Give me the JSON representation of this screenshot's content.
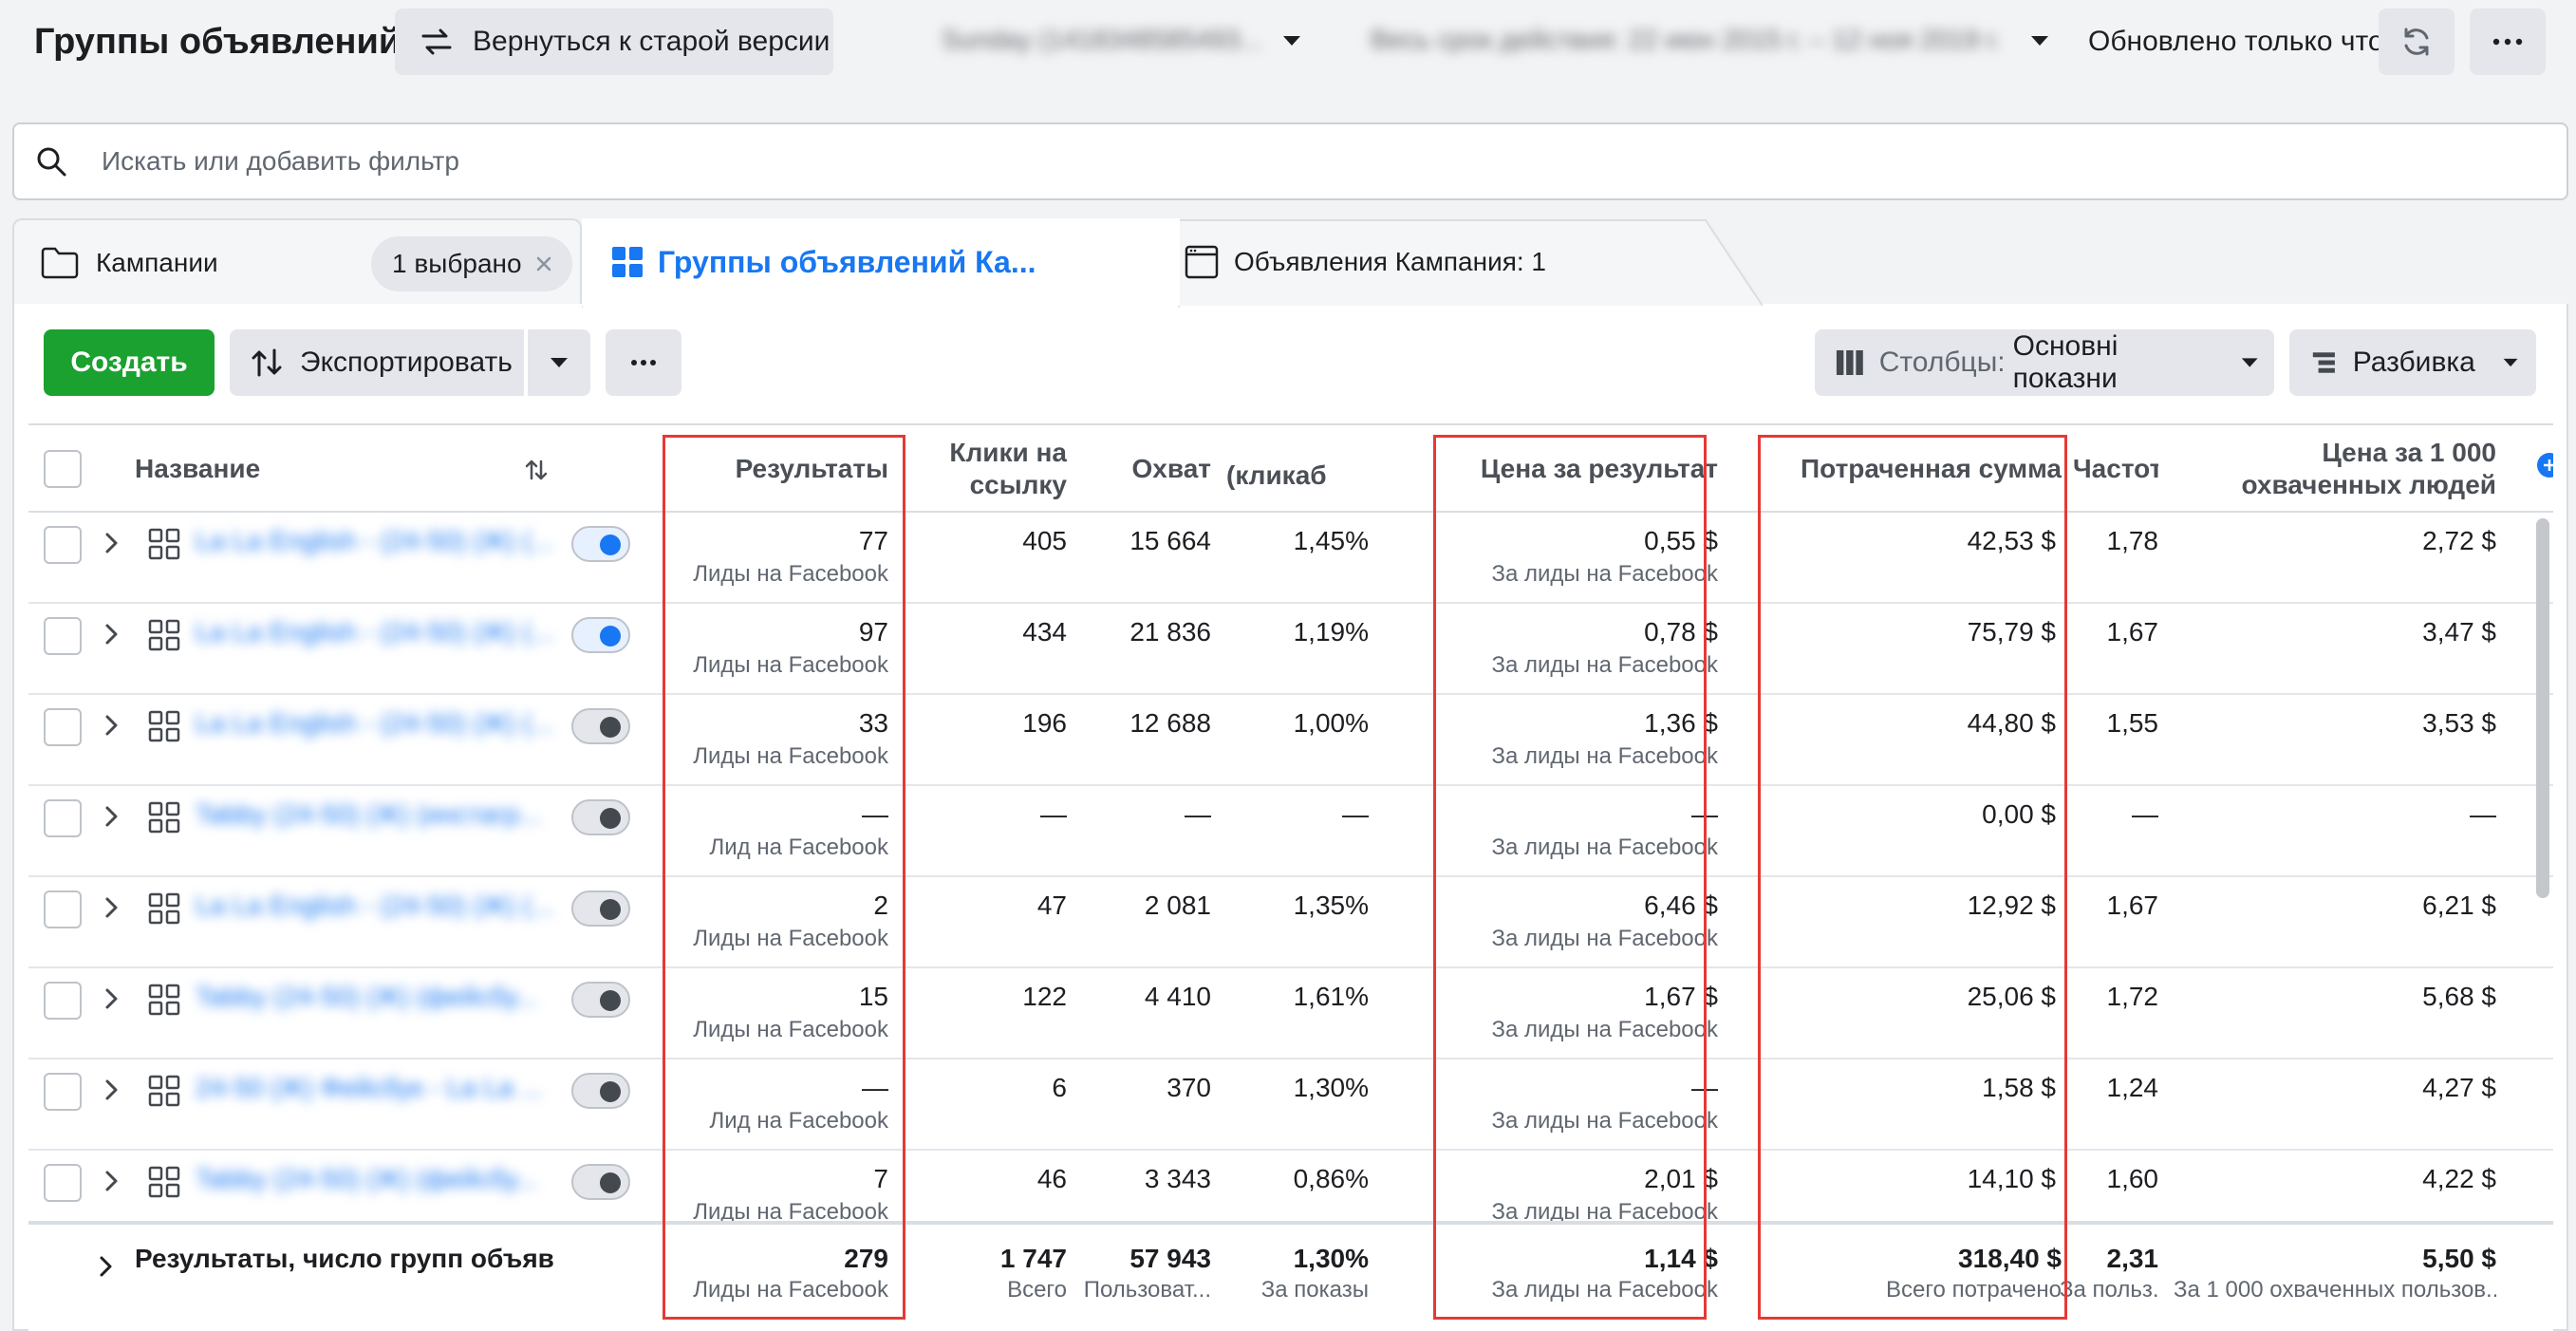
{
  "header": {
    "title": "Группы объявлений",
    "old_version_label": "Вернуться к старой версии",
    "account_selector": "Sunday (1418348585493...",
    "date_range": "Весь срок действия: 22 июн 2015 г. – 12 ноя 2019 г.",
    "updated_label": "Обновлено только что"
  },
  "search": {
    "placeholder": "Искать или добавить фильтр"
  },
  "tabs": {
    "campaigns": "Кампании",
    "selected_pill": "1 выбрано",
    "adsets": "Группы объявлений Ка...",
    "ads": "Объявления Кампания: 1"
  },
  "toolbar": {
    "create": "Создать",
    "export": "Экспортировать",
    "columns_prefix": "Столбцы:",
    "columns_value": "Основні показни",
    "breakdown": "Разбивка"
  },
  "columns": {
    "name": "Название",
    "results": "Результаты",
    "clicks_l1": "Клики на",
    "clicks_l2": "ссылку",
    "reach": "Охват",
    "ctr": "(кликаб",
    "cpr": "Цена за результат",
    "spent": "Потраченная сумма",
    "freq": "Частота",
    "cpm_l1": "Цена за 1 000",
    "cpm_l2": "охваченных людей"
  },
  "rows": [
    {
      "name": "La La English - (24-50) (Ж) (...",
      "on": true,
      "results": "77",
      "results_sub": "Лиды на Facebook",
      "clicks": "405",
      "reach": "15 664",
      "ctr": "1,45%",
      "cpr": "0,55 $",
      "cpr_sub": "За лиды на Facebook",
      "spent": "42,53 $",
      "freq": "1,78",
      "cpm": "2,72 $"
    },
    {
      "name": "La La English - (24-50) (Ж) (...",
      "on": true,
      "results": "97",
      "results_sub": "Лиды на Facebook",
      "clicks": "434",
      "reach": "21 836",
      "ctr": "1,19%",
      "cpr": "0,78 $",
      "cpr_sub": "За лиды на Facebook",
      "spent": "75,79 $",
      "freq": "1,67",
      "cpm": "3,47 $"
    },
    {
      "name": "La La English - (24-50) (Ж) (...",
      "on": false,
      "results": "33",
      "results_sub": "Лиды на Facebook",
      "clicks": "196",
      "reach": "12 688",
      "ctr": "1,00%",
      "cpr": "1,36 $",
      "cpr_sub": "За лиды на Facebook",
      "spent": "44,80 $",
      "freq": "1,55",
      "cpm": "3,53 $"
    },
    {
      "name": "Tabby (24-50) (Ж) (инстагр...",
      "on": false,
      "results": "—",
      "results_sub": "Лид на Facebook",
      "clicks": "—",
      "reach": "—",
      "ctr": "—",
      "cpr": "—",
      "cpr_sub": "За лиды на Facebook",
      "spent": "0,00 $",
      "freq": "—",
      "cpm": "—"
    },
    {
      "name": "La La English - (24-50) (Ж) (...",
      "on": false,
      "results": "2",
      "results_sub": "Лиды на Facebook",
      "clicks": "47",
      "reach": "2 081",
      "ctr": "1,35%",
      "cpr": "6,46 $",
      "cpr_sub": "За лиды на Facebook",
      "spent": "12,92 $",
      "freq": "1,67",
      "cpm": "6,21 $"
    },
    {
      "name": "Tabby (24-50) (Ж) (фейсбу...",
      "on": false,
      "results": "15",
      "results_sub": "Лиды на Facebook",
      "clicks": "122",
      "reach": "4 410",
      "ctr": "1,61%",
      "cpr": "1,67 $",
      "cpr_sub": "За лиды на Facebook",
      "spent": "25,06 $",
      "freq": "1,72",
      "cpm": "5,68 $"
    },
    {
      "name": "24-50 (Ж) Фейсбук - La La ...",
      "on": false,
      "results": "—",
      "results_sub": "Лид на Facebook",
      "clicks": "6",
      "reach": "370",
      "ctr": "1,30%",
      "cpr": "—",
      "cpr_sub": "За лиды на Facebook",
      "spent": "1,58 $",
      "freq": "1,24",
      "cpm": "4,27 $"
    },
    {
      "name": "Tabby (24-50) (Ж) (фейсбу...",
      "on": false,
      "results": "7",
      "results_sub": "Лиды на Facebook",
      "clicks": "46",
      "reach": "3 343",
      "ctr": "0,86%",
      "cpr": "2,01 $",
      "cpr_sub": "За лиды на Facebook",
      "spent": "14,10 $",
      "freq": "1,60",
      "cpm": "4,22 $"
    }
  ],
  "totals": {
    "label": "Результаты, число групп объяв",
    "results": "279",
    "results_sub": "Лиды на Facebook",
    "clicks": "1 747",
    "clicks_sub": "Всего",
    "reach": "57 943",
    "reach_sub": "Пользоват...",
    "ctr": "1,30%",
    "ctr_sub": "За показы",
    "cpr": "1,14 $",
    "cpr_sub": "За лиды на Facebook",
    "spent": "318,40 $",
    "spent_sub": "Всего потрачено",
    "freq": "2,31",
    "freq_sub": "За польз...",
    "cpm": "5,50 $",
    "cpm_sub": "За 1 000 охваченных пользов..."
  },
  "colors": {
    "accent": "#1877f2",
    "create": "#1aa130",
    "highlight": "#e53935"
  }
}
